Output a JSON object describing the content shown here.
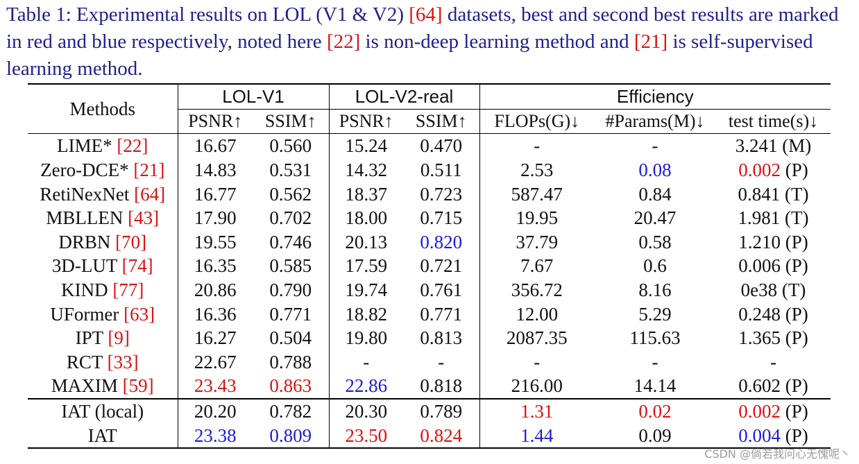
{
  "caption": {
    "part1": "Table 1: Experimental results on LOL (V1 & V2) ",
    "ref1": "[64]",
    "part2": " datasets, best and second best results are marked in red and blue respectively, noted here ",
    "ref2": "[22]",
    "part3": " is non-deep learning method and ",
    "ref3": "[21]",
    "part4": " is self-supervised learning method."
  },
  "header": {
    "methods": "Methods",
    "group1": "LOL-V1",
    "group2": "LOL-V2-real",
    "group3": "Efficiency",
    "cols": [
      "PSNR↑",
      "SSIM↑",
      "PSNR↑",
      "SSIM↑",
      "FLOPs(G)↓",
      "#Params(M)↓",
      "test time(s)↓"
    ]
  },
  "colors": {
    "best": "#e01010",
    "second": "#1a1ae6"
  },
  "rows": [
    {
      "name": "LIME* ",
      "ref": "[22]",
      "cells": [
        "16.67",
        "0.560",
        "15.24",
        "0.470",
        "-",
        "-",
        "3.241 (M)"
      ],
      "marks": [
        "",
        "",
        "",
        "",
        "",
        "",
        ""
      ]
    },
    {
      "name": "Zero-DCE* ",
      "ref": "[21]",
      "cells": [
        "14.83",
        "0.531",
        "14.32",
        "0.511",
        "2.53",
        "0.08",
        "0.002"
      ],
      "suffix": " (P)",
      "marks": [
        "",
        "",
        "",
        "",
        "",
        "blue",
        "red"
      ]
    },
    {
      "name": "RetiNexNet ",
      "ref": "[64]",
      "cells": [
        "16.77",
        "0.562",
        "18.37",
        "0.723",
        "587.47",
        "0.84",
        "0.841 (T)"
      ],
      "marks": [
        "",
        "",
        "",
        "",
        "",
        "",
        ""
      ]
    },
    {
      "name": "MBLLEN ",
      "ref": "[43]",
      "cells": [
        "17.90",
        "0.702",
        "18.00",
        "0.715",
        "19.95",
        "20.47",
        "1.981 (T)"
      ],
      "marks": [
        "",
        "",
        "",
        "",
        "",
        "",
        ""
      ]
    },
    {
      "name": "DRBN ",
      "ref": "[70]",
      "cells": [
        "19.55",
        "0.746",
        "20.13",
        "0.820",
        "37.79",
        "0.58",
        "1.210 (P)"
      ],
      "marks": [
        "",
        "",
        "",
        "blue",
        "",
        "",
        ""
      ]
    },
    {
      "name": "3D-LUT ",
      "ref": "[74]",
      "cells": [
        "16.35",
        "0.585",
        "17.59",
        "0.721",
        "7.67",
        "0.6",
        "0.006 (P)"
      ],
      "marks": [
        "",
        "",
        "",
        "",
        "",
        "",
        ""
      ]
    },
    {
      "name": "KIND ",
      "ref": "[77]",
      "cells": [
        "20.86",
        "0.790",
        "19.74",
        "0.761",
        "356.72",
        "8.16",
        "0e38 (T)"
      ],
      "marks": [
        "",
        "",
        "",
        "",
        "",
        "",
        ""
      ]
    },
    {
      "name": "UFormer ",
      "ref": "[63]",
      "cells": [
        "16.36",
        "0.771",
        "18.82",
        "0.771",
        "12.00",
        "5.29",
        "0.248 (P)"
      ],
      "marks": [
        "",
        "",
        "",
        "",
        "",
        "",
        ""
      ]
    },
    {
      "name": "IPT ",
      "ref": "[9]",
      "cells": [
        "16.27",
        "0.504",
        "19.80",
        "0.813",
        "2087.35",
        "115.63",
        "1.365 (P)"
      ],
      "marks": [
        "",
        "",
        "",
        "",
        "",
        "",
        ""
      ]
    },
    {
      "name": "RCT ",
      "ref": "[33]",
      "cells": [
        "22.67",
        "0.788",
        "-",
        "-",
        "-",
        "-",
        "-"
      ],
      "marks": [
        "",
        "",
        "",
        "",
        "",
        "",
        ""
      ]
    },
    {
      "name": "MAXIM ",
      "ref": "[59]",
      "cells": [
        "23.43",
        "0.863",
        "22.86",
        "0.818",
        "216.00",
        "14.14",
        "0.602 (P)"
      ],
      "marks": [
        "red",
        "red",
        "blue",
        "",
        "",
        "",
        ""
      ]
    }
  ],
  "ours": [
    {
      "name": "IAT (local)",
      "cells": [
        "20.20",
        "0.782",
        "20.30",
        "0.789",
        "1.31",
        "0.02",
        "0.002"
      ],
      "suffix": " (P)",
      "marks": [
        "",
        "",
        "",
        "",
        "red",
        "red",
        "red"
      ]
    },
    {
      "name": "IAT",
      "cells": [
        "23.38",
        "0.809",
        "23.50",
        "0.824",
        "1.44",
        "0.09",
        "0.004"
      ],
      "suffix": " (P)",
      "marks": [
        "blue",
        "blue",
        "red",
        "red",
        "blue",
        "",
        "blue"
      ]
    }
  ],
  "watermark": "CSDN @倘若我问心无愧呢丶"
}
